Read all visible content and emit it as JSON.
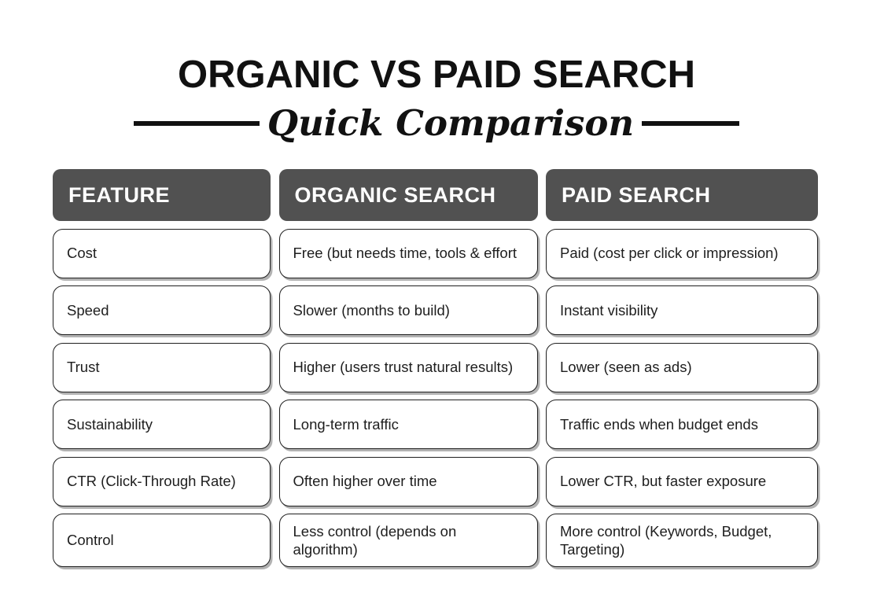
{
  "header": {
    "title": "ORGANIC VS PAID SEARCH",
    "subtitle": "Quick Comparison"
  },
  "colors": {
    "background": "#ffffff",
    "title_text": "#111111",
    "divider_line": "#111111",
    "header_bg": "#515151",
    "header_text": "#ffffff",
    "cell_border": "#1f1f1f",
    "cell_text": "#1e1e1e"
  },
  "table": {
    "columns": [
      "FEATURE",
      "ORGANIC SEARCH",
      "PAID SEARCH"
    ],
    "rows": [
      {
        "feature": "Cost",
        "organic": "Free (but needs time, tools & effort",
        "paid": "Paid (cost per click or impression)"
      },
      {
        "feature": "Speed",
        "organic": "Slower (months to build)",
        "paid": "Instant visibility"
      },
      {
        "feature": "Trust",
        "organic": "Higher (users trust natural results)",
        "paid": "Lower (seen as ads)"
      },
      {
        "feature": "Sustainability",
        "organic": "Long-term traffic",
        "paid": "Traffic ends when budget ends"
      },
      {
        "feature": "CTR (Click-Through Rate)",
        "organic": "Often higher over time",
        "paid": "Lower CTR, but faster exposure"
      },
      {
        "feature": "Control",
        "organic": "Less control (depends on algorithm)",
        "paid": "More control (Keywords, Budget, Targeting)"
      }
    ]
  }
}
